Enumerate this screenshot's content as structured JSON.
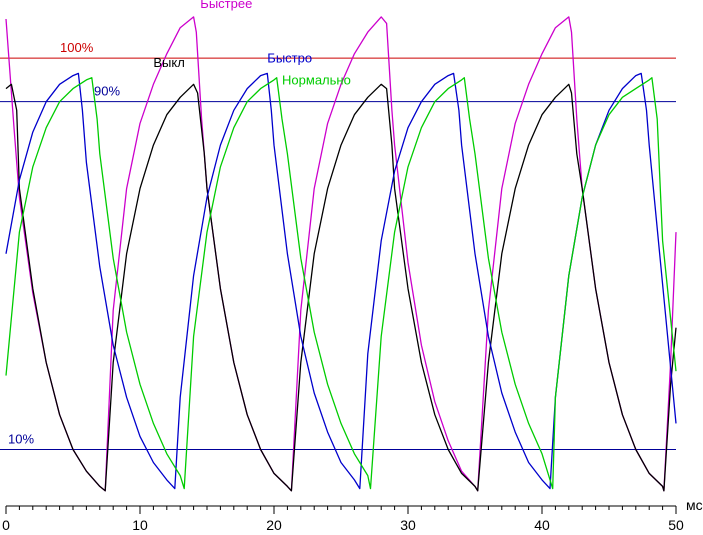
{
  "chart_data": {
    "type": "line",
    "title": "",
    "xlabel": "мс",
    "ylabel": "",
    "xlim": [
      0,
      50
    ],
    "ylim": [
      -3,
      112
    ],
    "x_ticks": [
      "0",
      "10",
      "20",
      "30",
      "40",
      "50"
    ],
    "reference_lines": [
      {
        "label": "100%",
        "y": 100,
        "color": "#cc0000"
      },
      {
        "label": "90%",
        "y": 90,
        "color": "#000099"
      },
      {
        "label": "10%",
        "y": 10,
        "color": "#000099"
      }
    ],
    "series": [
      {
        "name": "Быстрее",
        "color": "#cc00cc",
        "x": [
          0,
          0.6,
          1,
          2,
          3,
          4,
          5,
          6,
          7,
          7.4,
          8,
          9,
          10,
          11,
          12,
          13,
          14,
          14.2,
          14.6,
          15,
          16,
          17,
          18,
          19,
          20,
          21,
          21.3,
          22,
          23,
          24,
          25,
          26,
          27,
          28,
          28.4,
          28.8,
          29,
          30,
          31,
          32,
          33,
          34,
          35,
          35.2,
          36,
          37,
          38,
          39,
          40,
          41,
          42,
          42.2,
          42.6,
          43,
          44,
          45,
          46,
          47,
          48,
          49,
          49.1,
          49.6,
          50
        ],
        "values": [
          109,
          84,
          68,
          46,
          30,
          18,
          10,
          5,
          1.5,
          0.5,
          42,
          70,
          85,
          94,
          101,
          107,
          109.5,
          106,
          86,
          70,
          47,
          30,
          18,
          10,
          4.5,
          1.5,
          0.5,
          42,
          70,
          85,
          94,
          101,
          106,
          109.5,
          108,
          88,
          80,
          53,
          34,
          21,
          12,
          5,
          1.5,
          0.5,
          42,
          70,
          85,
          94,
          101,
          107,
          109.5,
          106,
          86,
          70,
          47,
          30,
          18,
          10,
          4.5,
          1.5,
          0.5,
          30,
          60
        ]
      },
      {
        "name": "Выкл",
        "color": "#000000",
        "x": [
          0,
          0.4,
          0.8,
          1,
          2,
          3,
          4,
          5,
          6,
          7,
          7.4,
          8,
          9,
          10,
          11,
          12,
          13,
          14,
          14.3,
          14.8,
          15,
          16,
          17,
          18,
          19,
          20,
          21,
          21.3,
          22,
          23,
          24,
          25,
          26,
          27,
          28,
          28.4,
          28.8,
          29,
          30,
          31,
          32,
          33,
          34,
          35,
          35.2,
          36,
          37,
          38,
          39,
          40,
          41,
          42,
          42.2,
          42.6,
          43,
          44,
          45,
          46,
          47,
          48,
          49,
          49.1,
          49.6,
          50
        ],
        "values": [
          93,
          94,
          88,
          70,
          47,
          30,
          18,
          10,
          5,
          1.5,
          0.5,
          30,
          55,
          70,
          80,
          87,
          91,
          94,
          92,
          78,
          70,
          47,
          30,
          18,
          10,
          4.5,
          1.5,
          0.5,
          30,
          55,
          70,
          80,
          87,
          91,
          94,
          93,
          80,
          70,
          47,
          30,
          18,
          10,
          4.5,
          1.5,
          0.5,
          30,
          55,
          70,
          80,
          87,
          91,
          94,
          92,
          78,
          70,
          47,
          30,
          18,
          10,
          4.5,
          1.5,
          0.5,
          25,
          38
        ]
      },
      {
        "name": "Быстро",
        "color": "#0000cc",
        "x": [
          0,
          1,
          2,
          3,
          4,
          5,
          5.4,
          5.7,
          6,
          7,
          8,
          9,
          10,
          11,
          12,
          12.6,
          13,
          14,
          15,
          16,
          17,
          18,
          19,
          19.5,
          19.8,
          20,
          21,
          22,
          23,
          24,
          25,
          26,
          26.4,
          27,
          28,
          29,
          30,
          31,
          32,
          33,
          33.4,
          33.8,
          34,
          35,
          36,
          37,
          38,
          39,
          40,
          40.6,
          41,
          42,
          43,
          44,
          45,
          46,
          47,
          47.4,
          47.8,
          48,
          49,
          50
        ],
        "values": [
          55,
          72,
          83,
          90,
          94,
          96,
          96.5,
          88,
          76,
          52,
          34,
          22,
          13,
          7,
          3,
          1,
          22,
          50,
          68,
          80,
          88,
          93,
          96,
          96.5,
          88,
          80,
          55,
          36,
          23,
          14,
          7,
          3,
          1,
          32,
          58,
          74,
          84,
          90,
          94,
          96,
          96.5,
          88,
          80,
          55,
          36,
          23,
          14,
          7,
          3,
          1,
          22,
          50,
          68,
          80,
          88,
          93,
          96,
          96.5,
          88,
          80,
          48,
          16
        ]
      },
      {
        "name": "Нормально",
        "color": "#00cc00",
        "x": [
          0,
          1,
          2,
          3,
          4,
          5,
          6,
          6.4,
          6.8,
          7,
          8,
          9,
          10,
          11,
          12,
          13,
          13.3,
          14,
          15,
          16,
          17,
          18,
          19,
          20,
          20.2,
          20.6,
          21,
          22,
          23,
          24,
          25,
          26,
          27,
          27.2,
          28,
          29,
          30,
          31,
          32,
          33,
          34,
          34.2,
          34.6,
          35,
          36,
          37,
          38,
          39,
          40,
          40.8,
          41,
          42,
          43,
          44,
          45,
          46,
          47,
          48,
          48.2,
          48.6,
          49,
          50
        ],
        "values": [
          27,
          60,
          75,
          84,
          90,
          93,
          95,
          95.5,
          86,
          78,
          54,
          37,
          25,
          16,
          9,
          4,
          1,
          36,
          60,
          75,
          84,
          90,
          93,
          95,
          95.5,
          86,
          78,
          54,
          37,
          25,
          16,
          9,
          4,
          1,
          36,
          60,
          75,
          84,
          90,
          93,
          95,
          95.5,
          86,
          78,
          54,
          37,
          25,
          16,
          9,
          1,
          22,
          50,
          68,
          80,
          87,
          91,
          93,
          95,
          95.5,
          86,
          58,
          28
        ]
      }
    ],
    "annotations": [
      {
        "text": "Быстрее",
        "series": "Быстрее",
        "x": 14.5,
        "y": 111.5
      },
      {
        "text": "Выкл",
        "series": "Выкл",
        "x": 11,
        "y": 98
      },
      {
        "text": "Быстро",
        "series": "Быстро",
        "x": 19.5,
        "y": 99
      },
      {
        "text": "Нормально",
        "series": "Нормально",
        "x": 20.6,
        "y": 94
      }
    ]
  }
}
